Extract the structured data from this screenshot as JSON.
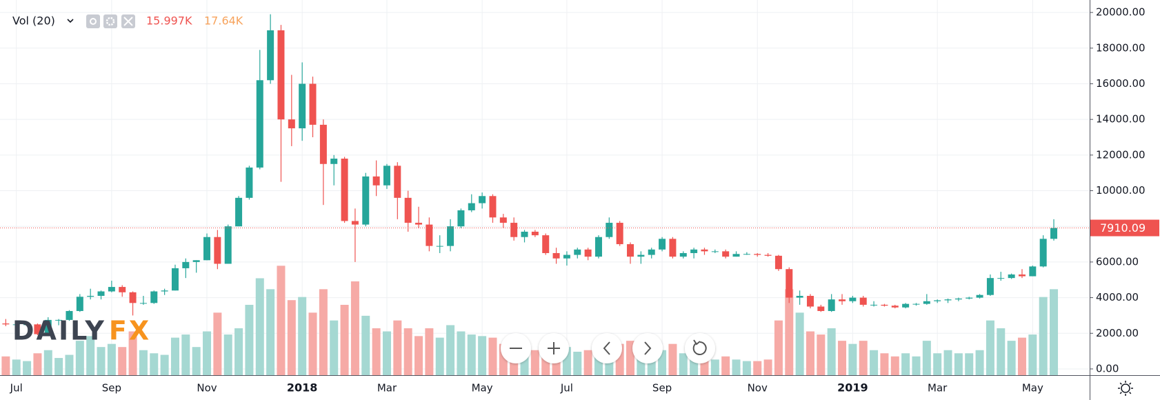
{
  "chart_data": {
    "type": "candlestick",
    "legend": {
      "label": "Vol (20)",
      "values": [
        "15.997K",
        "17.64K"
      ],
      "colors": [
        "#ef5350",
        "#f7a35c"
      ]
    },
    "watermark": [
      "DAILY",
      "FX"
    ],
    "up_color": "#26a69a",
    "down_color": "#ef5350",
    "volume_up_color": "#a5d8d2",
    "volume_down_color": "#f6aaa6",
    "categories": [
      null,
      "Jul",
      null,
      null,
      null,
      null,
      null,
      null,
      null,
      null,
      "Sep",
      null,
      null,
      null,
      null,
      null,
      null,
      null,
      null,
      "Nov",
      null,
      null,
      null,
      null,
      null,
      null,
      null,
      null,
      "2018",
      null,
      null,
      null,
      null,
      null,
      null,
      null,
      "Mar",
      null,
      null,
      null,
      null,
      null,
      null,
      null,
      null,
      "May",
      null,
      null,
      null,
      null,
      null,
      null,
      null,
      "Jul",
      null,
      null,
      null,
      null,
      null,
      null,
      null,
      null,
      "Sep",
      null,
      null,
      null,
      null,
      null,
      null,
      null,
      null,
      "Nov",
      null,
      null,
      null,
      null,
      null,
      null,
      null,
      null,
      "2019",
      null,
      null,
      null,
      null,
      null,
      null,
      null,
      "Mar",
      null,
      null,
      null,
      null,
      null,
      null,
      null,
      null,
      "May",
      null,
      null
    ],
    "open": [
      2550,
      2500,
      2500,
      2500,
      1950,
      2750,
      2750,
      3250,
      4050,
      4100,
      4350,
      4600,
      4300,
      3700,
      3700,
      4350,
      4400,
      5650,
      6000,
      6100,
      7400,
      5900,
      8000,
      9600,
      11300,
      16200,
      19000,
      14000,
      13500,
      16000,
      13700,
      11500,
      11800,
      8300,
      8100,
      10800,
      10300,
      11400,
      9600,
      8200,
      8100,
      6900,
      6900,
      8000,
      8900,
      9300,
      9700,
      8500,
      8200,
      7400,
      7700,
      7500,
      6500,
      6200,
      6400,
      6700,
      6300,
      7400,
      8200,
      7000,
      6300,
      6400,
      6700,
      7300,
      6300,
      6500,
      6700,
      6600,
      6600,
      6300,
      6450,
      6450,
      6400,
      6350,
      5600,
      4000,
      4100,
      3500,
      3250,
      3900,
      3800,
      4000,
      3600,
      3600,
      3550,
      3450,
      3650,
      3650,
      3800,
      3850,
      3900,
      3950,
      4000,
      4150,
      5100,
      5100,
      5300,
      5200,
      5750,
      7300
    ],
    "high": [
      2800,
      2600,
      2650,
      2550,
      2900,
      2800,
      3300,
      4200,
      4500,
      4400,
      4950,
      4700,
      4350,
      4100,
      4400,
      4500,
      5850,
      6200,
      6100,
      7600,
      7800,
      8100,
      9700,
      11400,
      17900,
      19900,
      19300,
      16500,
      17200,
      16400,
      14000,
      12000,
      11900,
      9000,
      11000,
      11700,
      11500,
      11600,
      10000,
      9100,
      8500,
      7500,
      8400,
      9000,
      9800,
      9900,
      9800,
      8700,
      8500,
      7800,
      7800,
      7600,
      6800,
      6600,
      6800,
      6800,
      7500,
      8500,
      8300,
      7100,
      6600,
      6800,
      7400,
      7400,
      6600,
      6800,
      6800,
      6700,
      6700,
      6600,
      6550,
      6500,
      6500,
      6400,
      5700,
      4400,
      4200,
      3600,
      4200,
      4200,
      4100,
      4100,
      3800,
      3650,
      3600,
      3700,
      3700,
      4200,
      3900,
      3950,
      4000,
      4050,
      4200,
      5300,
      5450,
      5350,
      5600,
      5800,
      7500,
      8400
    ],
    "low": [
      2400,
      2400,
      2450,
      1900,
      1900,
      2450,
      2700,
      3200,
      3900,
      3900,
      4300,
      4050,
      3000,
      3600,
      3650,
      4150,
      4400,
      5100,
      5400,
      6100,
      5600,
      5900,
      8000,
      9500,
      11200,
      16000,
      10500,
      12500,
      12800,
      13000,
      9200,
      10300,
      8200,
      6000,
      8000,
      9700,
      10100,
      8400,
      7700,
      7900,
      6600,
      6500,
      6600,
      7900,
      8800,
      9000,
      8200,
      7900,
      7200,
      7100,
      7400,
      6400,
      5900,
      5800,
      6200,
      6100,
      6200,
      7300,
      6900,
      5900,
      5900,
      6200,
      6600,
      6200,
      6200,
      6200,
      6400,
      6500,
      6200,
      6300,
      6400,
      6300,
      6300,
      5500,
      3700,
      3600,
      3400,
      3200,
      3200,
      3600,
      3700,
      3500,
      3500,
      3500,
      3400,
      3400,
      3550,
      3600,
      3700,
      3700,
      3800,
      3900,
      3950,
      4100,
      4950,
      5050,
      5100,
      5200,
      5700,
      7200
    ],
    "close": [
      2500,
      2500,
      2500,
      1950,
      2750,
      2750,
      3250,
      4050,
      4100,
      4350,
      4600,
      4300,
      3700,
      3700,
      4350,
      4400,
      5650,
      6000,
      6100,
      7400,
      5900,
      8000,
      9600,
      11300,
      16200,
      19000,
      14000,
      13500,
      16000,
      13700,
      11500,
      11800,
      8300,
      8100,
      10800,
      10300,
      11400,
      9600,
      8200,
      8100,
      6900,
      6900,
      8000,
      8900,
      9300,
      9700,
      8500,
      8200,
      7400,
      7700,
      7500,
      6500,
      6200,
      6400,
      6700,
      6300,
      7400,
      8200,
      7000,
      6300,
      6400,
      6700,
      7300,
      6300,
      6500,
      6700,
      6600,
      6600,
      6300,
      6450,
      6450,
      6400,
      6350,
      5600,
      4000,
      4100,
      3500,
      3250,
      3900,
      3800,
      4000,
      3600,
      3600,
      3550,
      3450,
      3650,
      3650,
      3800,
      3850,
      3900,
      3950,
      4000,
      4150,
      5100,
      5100,
      5300,
      5200,
      5750,
      7300,
      7910.09
    ],
    "volume": [
      12,
      10,
      9,
      14,
      16,
      11,
      13,
      22,
      25,
      18,
      20,
      18,
      28,
      16,
      14,
      13,
      24,
      26,
      18,
      28,
      40,
      26,
      30,
      45,
      62,
      55,
      70,
      48,
      50,
      40,
      55,
      35,
      45,
      60,
      38,
      30,
      28,
      35,
      30,
      25,
      30,
      24,
      32,
      28,
      26,
      25,
      24,
      20,
      22,
      18,
      16,
      20,
      22,
      18,
      15,
      16,
      22,
      26,
      20,
      22,
      18,
      14,
      16,
      20,
      14,
      12,
      11,
      10,
      12,
      10,
      9,
      9,
      10,
      35,
      55,
      40,
      28,
      26,
      30,
      22,
      20,
      22,
      16,
      14,
      12,
      14,
      12,
      22,
      14,
      16,
      14,
      14,
      16,
      35,
      30,
      22,
      24,
      26,
      50,
      55
    ],
    "ylim": [
      -350,
      20700
    ],
    "y2lim": [
      0,
      240
    ],
    "yticks": [
      {
        "value": 0,
        "label": "0.00"
      },
      {
        "value": 2000,
        "label": "2000.00"
      },
      {
        "value": 4000,
        "label": "4000.00"
      },
      {
        "value": 6000,
        "label": "6000.00"
      },
      {
        "value": 8000,
        "label": "8000.00"
      },
      {
        "value": 10000,
        "label": "10000.00"
      },
      {
        "value": 12000,
        "label": "12000.00"
      },
      {
        "value": 14000,
        "label": "14000.00"
      },
      {
        "value": 16000,
        "label": "16000.00"
      },
      {
        "value": 18000,
        "label": "18000.00"
      },
      {
        "value": 20000,
        "label": "20000.00"
      }
    ],
    "grid": true
  }
}
